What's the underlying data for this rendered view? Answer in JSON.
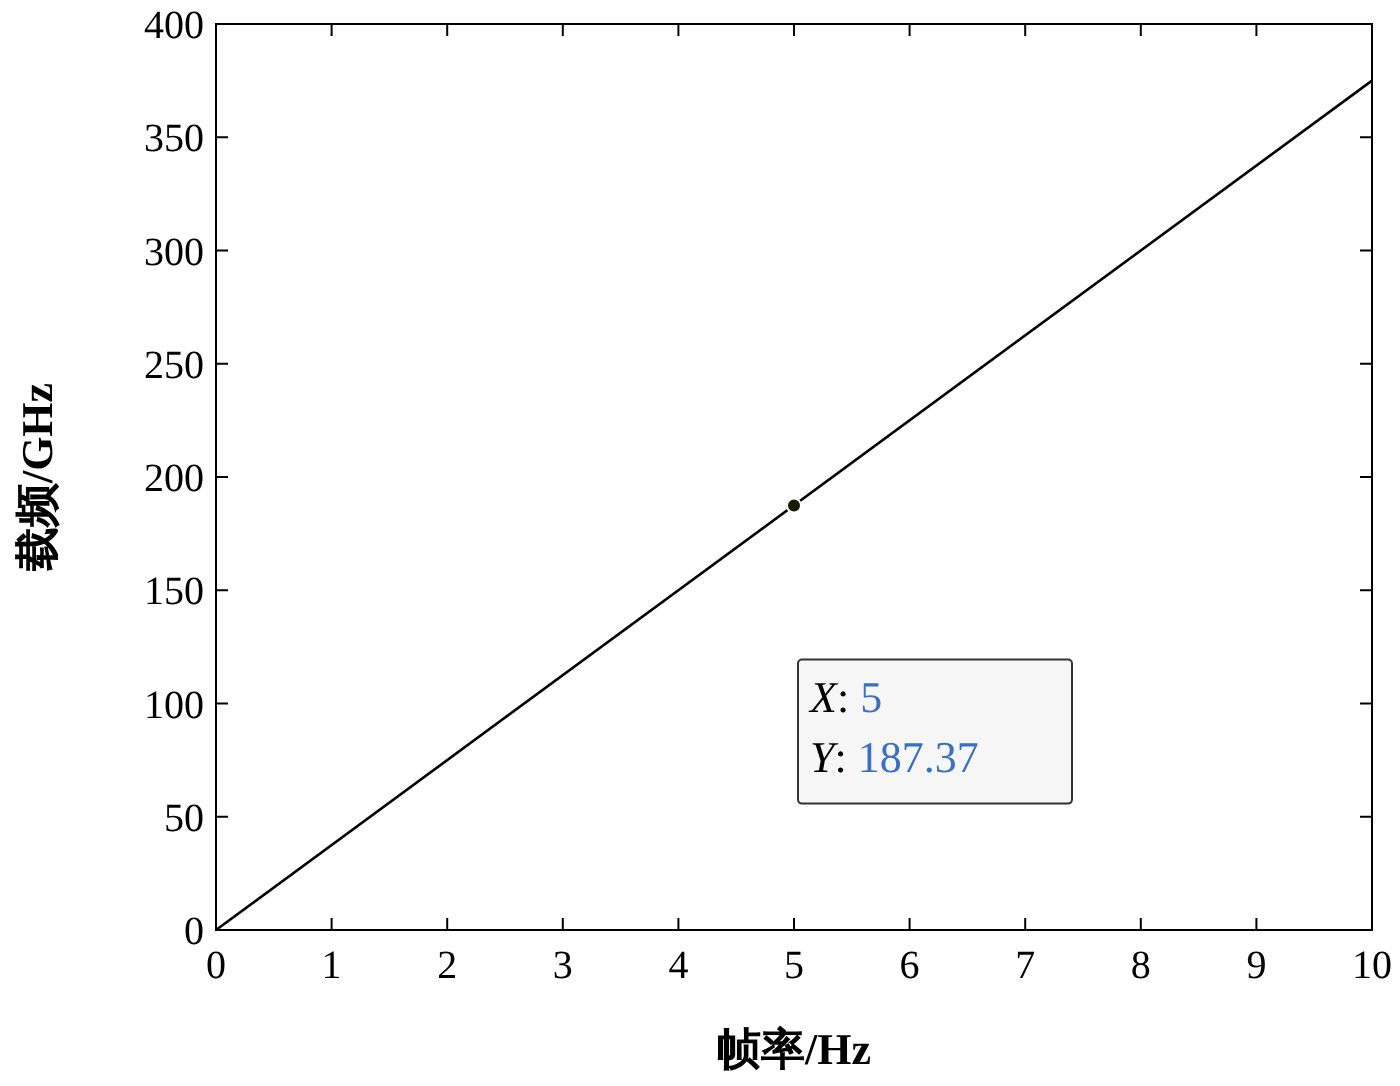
{
  "chart_data": {
    "type": "line",
    "xlabel": "帧率/Hz",
    "ylabel": "载频/GHz",
    "series": [
      {
        "x": [
          0,
          10
        ],
        "values": [
          0,
          375
        ],
        "color": "#000000"
      },
      {
        "type": "scatter",
        "x": [
          5
        ],
        "values": [
          187.37
        ],
        "color": "#1a1a00"
      }
    ],
    "xlim": [
      0,
      10
    ],
    "ylim": [
      0,
      400
    ],
    "xticks": [
      0,
      1,
      2,
      3,
      4,
      5,
      6,
      7,
      8,
      9,
      10
    ],
    "yticks": [
      0,
      50,
      100,
      150,
      200,
      250,
      300,
      350,
      400
    ],
    "grid": false,
    "line_style": "solid",
    "annotations": [
      "X: 5",
      "Y: 187.37"
    ]
  }
}
